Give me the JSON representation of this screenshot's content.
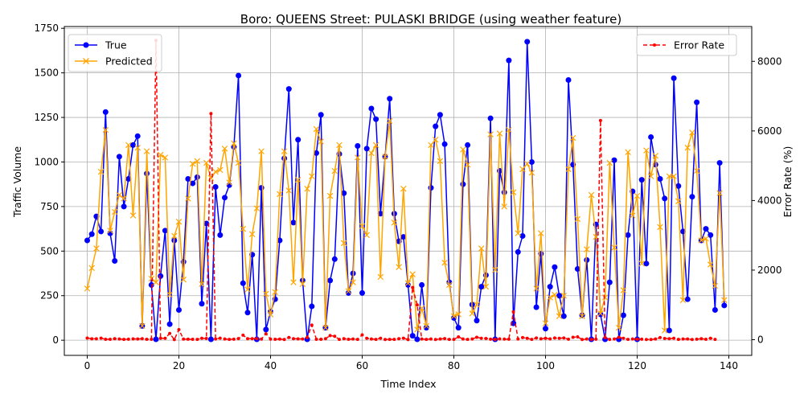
{
  "chart_data": {
    "type": "line",
    "title": "Boro: QUEENS Street: PULASKI BRIDGE (using weather feature)",
    "xlabel": "Time Index",
    "ylabel_left": "Traffic Volume",
    "ylabel_right": "Error Rate (%)",
    "xlim": [
      -5,
      145
    ],
    "ylim_left": [
      -85,
      1760
    ],
    "ylim_right": [
      -450,
      9000
    ],
    "x_ticks": [
      0,
      20,
      40,
      60,
      80,
      100,
      120,
      140
    ],
    "y_ticks_left": [
      0,
      250,
      500,
      750,
      1000,
      1250,
      1500,
      1750
    ],
    "y_ticks_right": [
      0,
      2000,
      4000,
      6000,
      8000
    ],
    "grid": true,
    "legend_left_position": "top-left",
    "legend_right_position": "top-right",
    "series": [
      {
        "name": "True",
        "axis": "left",
        "color": "#0000ff",
        "marker": "circle",
        "values": [
          560,
          595,
          695,
          610,
          1280,
          600,
          445,
          1030,
          750,
          905,
          1095,
          1145,
          80,
          935,
          310,
          5,
          360,
          615,
          90,
          560,
          170,
          440,
          905,
          880,
          915,
          205,
          655,
          5,
          860,
          590,
          800,
          870,
          1085,
          1485,
          320,
          155,
          480,
          5,
          855,
          60,
          160,
          230,
          560,
          1020,
          1410,
          660,
          1125,
          335,
          5,
          190,
          1050,
          1265,
          70,
          335,
          455,
          1045,
          825,
          265,
          375,
          1090,
          265,
          1075,
          1300,
          1240,
          710,
          1030,
          1355,
          710,
          555,
          580,
          310,
          25,
          5,
          310,
          70,
          855,
          1200,
          1265,
          1100,
          325,
          125,
          70,
          875,
          1095,
          200,
          110,
          300,
          365,
          1245,
          5,
          950,
          830,
          1570,
          95,
          495,
          585,
          1675,
          1000,
          185,
          485,
          65,
          300,
          410,
          250,
          135,
          1460,
          985,
          400,
          140,
          450,
          5,
          650,
          145,
          5,
          325,
          1010,
          5,
          140,
          590,
          835,
          5,
          900,
          430,
          1140,
          985,
          905,
          795,
          55,
          1470,
          865,
          610,
          230,
          805,
          1335,
          560,
          625,
          590,
          170,
          995,
          195
        ]
      },
      {
        "name": "Predicted",
        "axis": "left",
        "color": "#ffa500",
        "marker": "x",
        "values": [
          290,
          405,
          515,
          945,
          1180,
          615,
          720,
          815,
          795,
          1095,
          700,
          1080,
          80,
          1060,
          345,
          325,
          1040,
          1025,
          255,
          585,
          665,
          340,
          795,
          990,
          1005,
          315,
          995,
          910,
          945,
          955,
          1075,
          885,
          1105,
          995,
          625,
          285,
          595,
          740,
          1060,
          260,
          145,
          270,
          820,
          1060,
          840,
          325,
          900,
          315,
          850,
          920,
          1185,
          1115,
          70,
          810,
          950,
          1095,
          545,
          275,
          325,
          1025,
          640,
          590,
          1050,
          1095,
          355,
          1030,
          1230,
          660,
          410,
          850,
          320,
          370,
          60,
          180,
          80,
          1095,
          1125,
          1005,
          435,
          310,
          135,
          145,
          1070,
          985,
          150,
          200,
          515,
          300,
          1155,
          395,
          1160,
          750,
          1180,
          830,
          600,
          960,
          990,
          940,
          290,
          600,
          95,
          240,
          255,
          135,
          250,
          960,
          1135,
          680,
          135,
          510,
          815,
          580,
          150,
          240,
          995,
          520,
          70,
          280,
          1055,
          700,
          810,
          430,
          1065,
          920,
          1035,
          635,
          55,
          920,
          920,
          780,
          225,
          1080,
          1165,
          950,
          560,
          570,
          425,
          305,
          825,
          225
        ]
      },
      {
        "name": "Error Rate",
        "axis": "right",
        "color": "#ff0000",
        "marker": "dot",
        "dashed": true,
        "values": [
          48,
          27,
          26,
          45,
          12,
          13,
          28,
          21,
          10,
          15,
          25,
          20,
          28,
          11,
          13,
          8600,
          40,
          40,
          180,
          4,
          290,
          18,
          14,
          12,
          10,
          40,
          35,
          6500,
          22,
          43,
          20,
          10,
          15,
          33,
          130,
          30,
          30,
          30,
          18,
          170,
          18,
          12,
          18,
          6,
          65,
          30,
          25,
          20,
          60,
          420,
          13,
          12,
          28,
          120,
          100,
          10,
          30,
          12,
          20,
          10,
          140,
          40,
          20,
          10,
          40,
          5,
          10,
          10,
          30,
          45,
          4,
          1500,
          1000,
          20,
          10,
          22,
          7,
          20,
          31,
          8,
          8,
          80,
          20,
          10,
          20,
          70,
          40,
          35,
          16,
          10,
          25,
          18,
          15,
          800,
          20,
          60,
          40,
          10,
          50,
          27,
          40,
          25,
          50,
          40,
          50,
          15,
          70,
          80,
          5,
          20,
          10,
          15,
          6300,
          60,
          10,
          20,
          70,
          40,
          10,
          20,
          15,
          15,
          5,
          5,
          20,
          60,
          35,
          30,
          40,
          10,
          20,
          20,
          5,
          15,
          30,
          12,
          40,
          10
        ]
      }
    ]
  }
}
